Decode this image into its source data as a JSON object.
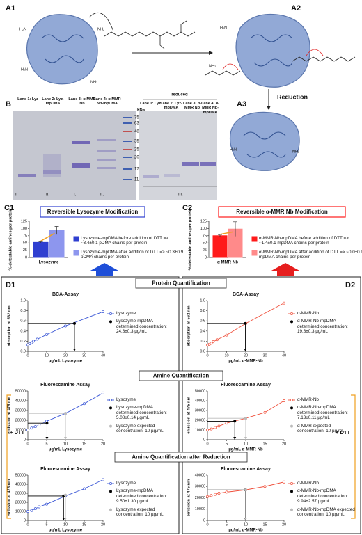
{
  "scheme": {
    "labels": [
      "A1",
      "A2",
      "A3"
    ],
    "reduction": "Reduction",
    "amines": [
      "H₂N",
      "NH₂",
      "H₂N",
      "NH₂",
      "H₂N",
      "NH₂",
      "H₂N",
      "NH₂"
    ]
  },
  "gel": {
    "label": "B",
    "lanes": [
      "Lane 1: Lyz",
      "Lane 2: Lyz-mpDMA",
      "Lane 3: α-MMR Nb",
      "Lane 4: α-MMR Nb-mpDMA"
    ],
    "reduced_lanes": [
      "Lane 1: Lyz",
      "Lane 2: Lyz-mpDMA",
      "Lane 3: α-MMR Nb",
      "Lane 4: α-MMR Nb-mpDMA"
    ],
    "kda": "kDa",
    "markers": [
      "75",
      "63",
      "48",
      "35",
      "25",
      "20",
      "17",
      "11"
    ],
    "reduced": "reduced",
    "groups": [
      "I.",
      "II.",
      "I.",
      "II.",
      "III."
    ]
  },
  "panels": {
    "c1": "C1",
    "c2": "C2",
    "d1": "D1",
    "d2": "D2",
    "sections": [
      "Protein Quantification",
      "Amine Quantification",
      "Amine Quantification after Reduction"
    ],
    "dtt": [
      "+ DTT",
      "+ DTT"
    ]
  },
  "chart_data": [
    {
      "type": "bar",
      "title": "Reversible Lysozyme Modification",
      "ylabel": "% detectable amines per protein",
      "categories": [
        "Lysozyme"
      ],
      "ylim": [
        0,
        125
      ],
      "yticks": [
        0,
        25,
        50,
        75,
        100,
        125
      ],
      "series": [
        {
          "name": "Lysozyme-mpDMA before addition of DTT => ~3.4±0.1 pDMA chains per protein",
          "color": "#2f3fd0",
          "values": [
            52
          ],
          "errors": [
            2
          ]
        },
        {
          "name": "Lysozyme-mpDMA after addition of DTT => ~0.3±0.9 pDMA chains per protein",
          "color": "#8d96ee",
          "values": [
            93
          ],
          "errors": [
            14
          ]
        }
      ]
    },
    {
      "type": "bar",
      "title": "Reversible α-MMR Nb Modification",
      "ylabel": "% detectable amines per protein",
      "categories": [
        "α-MMR-Nb"
      ],
      "ylim": [
        0,
        125
      ],
      "yticks": [
        0,
        25,
        50,
        75,
        100,
        125
      ],
      "series": [
        {
          "name": "α-MMR-Nb-mpDMA before addition of DTT => ~1.4±0.1 mpDMA chains per protein",
          "color": "#ff1a1a",
          "values": [
            75
          ],
          "errors": [
            4
          ]
        },
        {
          "name": "α-MMR-Nb-mpDMA after addition of DTT => ~0.0±0.9 mpDMA chains per protein",
          "color": "#ff8a8a",
          "values": [
            98
          ],
          "errors": [
            25
          ]
        }
      ]
    },
    {
      "type": "line",
      "title": "BCA-Assay",
      "xlabel": "µg/mL Lysozyme",
      "ylabel": "absorption at 562 nm",
      "xlim": [
        0,
        40
      ],
      "xticks": [
        0,
        10,
        20,
        30,
        40
      ],
      "ylim": [
        0,
        1
      ],
      "yticks": [
        {
          "value": 0,
          "label": "0.0"
        },
        0.2,
        0.4,
        0.6,
        0.8,
        {
          "value": 1,
          "label": "1.0"
        }
      ],
      "series": [
        {
          "name": "Lysozyme",
          "color": "#3b57d6",
          "mode": "line",
          "x": [
            0,
            1,
            2,
            3,
            5,
            10,
            20,
            40
          ],
          "values": [
            0.13,
            0.15,
            0.17,
            0.2,
            0.24,
            0.33,
            0.5,
            0.78
          ]
        },
        {
          "name": "Lysozyme-mpDMA determined concentration: 24.8±0.3 µg/mL",
          "color": "#000000",
          "mode": "guide",
          "x": [
            24.8
          ],
          "values": [
            0.55
          ]
        }
      ]
    },
    {
      "type": "line",
      "title": "Fluorescamine Assay",
      "xlabel": "µg/mL Lysozyme",
      "ylabel": "emission at 475 nm",
      "xlim": [
        0,
        20
      ],
      "xticks": [
        0,
        5,
        10,
        15,
        20
      ],
      "ylim": [
        0,
        50000
      ],
      "yticks": [
        0,
        10000,
        20000,
        30000,
        40000,
        50000
      ],
      "series": [
        {
          "name": "Lysozyme",
          "color": "#3b57d6",
          "mode": "line",
          "x": [
            0,
            1,
            2,
            3,
            5,
            10,
            15,
            20
          ],
          "values": [
            10000,
            12000,
            13500,
            15000,
            19000,
            27000,
            37000,
            48000
          ]
        },
        {
          "name": "Lysozyme-mpDMA determined concentration: 5.08±0.14 µg/mL",
          "color": "#000000",
          "mode": "guide",
          "x": [
            5.08
          ],
          "values": [
            17000
          ]
        },
        {
          "name": "Lysozyme expected concentration: 10 µg/mL",
          "color": "#bbbbbb",
          "mode": "guide",
          "x": [
            10
          ],
          "values": [
            27000
          ]
        }
      ]
    },
    {
      "type": "line",
      "title": "Fluorescamine Assay",
      "xlabel": "µg/mL Lysozyme",
      "ylabel": "emission at 475 nm",
      "xlim": [
        0,
        20
      ],
      "xticks": [
        0,
        5,
        10,
        15,
        20
      ],
      "ylim": [
        0,
        50000
      ],
      "yticks": [
        0,
        10000,
        20000,
        30000,
        40000,
        50000
      ],
      "series": [
        {
          "name": "Lysozyme",
          "color": "#3b57d6",
          "mode": "line",
          "x": [
            0,
            1,
            2,
            3,
            5,
            10,
            15,
            20
          ],
          "values": [
            10000,
            11000,
            13000,
            15000,
            18000,
            27000,
            35000,
            45000
          ]
        },
        {
          "name": "Lysozyme-mpDMA determined concentration: 9.50±1.30 µg/mL",
          "color": "#000000",
          "mode": "guide",
          "x": [
            9.5
          ],
          "values": [
            27000
          ]
        },
        {
          "name": "Lysozyme expected concentration: 10 µg/mL",
          "color": "#bbbbbb",
          "mode": "guide",
          "x": [
            10
          ],
          "values": [
            28000
          ]
        }
      ]
    },
    {
      "type": "line",
      "title": "BCA-Assay",
      "xlabel": "µg/mL α-MMR-Nb",
      "ylabel": "absorption at 562 nm",
      "xlim": [
        0,
        40
      ],
      "xticks": [
        0,
        10,
        20,
        30,
        40
      ],
      "ylim": [
        0,
        1
      ],
      "yticks": [
        {
          "value": 0,
          "label": "0.0"
        },
        0.2,
        0.4,
        0.6,
        0.8,
        {
          "value": 1,
          "label": "1.0"
        }
      ],
      "series": [
        {
          "name": "α-MMR-Nb",
          "color": "#f0503c",
          "mode": "line",
          "x": [
            0,
            1,
            2,
            3,
            5,
            10,
            20,
            40
          ],
          "values": [
            0.12,
            0.14,
            0.16,
            0.19,
            0.23,
            0.32,
            0.55,
            0.95
          ]
        },
        {
          "name": "α-MMR-Nb-mpDMA determined concentration: 19.8±0.3 µg/mL",
          "color": "#000000",
          "mode": "guide",
          "x": [
            19.8
          ],
          "values": [
            0.55
          ]
        }
      ]
    },
    {
      "type": "line",
      "title": "Fluorescamine Assay",
      "xlabel": "µg/mL α-MMR-Nb",
      "ylabel": "emission at 475 nm",
      "xlim": [
        0,
        20
      ],
      "xticks": [
        0,
        5,
        10,
        15,
        20
      ],
      "ylim": [
        0,
        50000
      ],
      "yticks": [
        0,
        10000,
        20000,
        30000,
        40000,
        50000
      ],
      "series": [
        {
          "name": "α-MMR-Nb",
          "color": "#f0503c",
          "mode": "line",
          "x": [
            0,
            1,
            2,
            3,
            5,
            10,
            15,
            20
          ],
          "values": [
            10000,
            11000,
            12500,
            14000,
            17000,
            22000,
            28000,
            40000
          ]
        },
        {
          "name": "α-MMR-Nb-mpDMA determined concentration: 7.13±0.11 µg/mL",
          "color": "#000000",
          "mode": "guide",
          "x": [
            7.13
          ],
          "values": [
            19000
          ]
        },
        {
          "name": "α-MMR expected concentration: 10 µg/mL",
          "color": "#bbbbbb",
          "mode": "guide",
          "x": [
            10
          ],
          "values": [
            22000
          ]
        }
      ]
    },
    {
      "type": "line",
      "title": "Fluorescamine Assay",
      "xlabel": "µg/mL α-MMR-Nb",
      "ylabel": "emission at 475 nm",
      "xlim": [
        0,
        20
      ],
      "xticks": [
        0,
        5,
        10,
        15,
        20
      ],
      "ylim": [
        0,
        40000
      ],
      "yticks": [
        0,
        10000,
        20000,
        30000,
        40000
      ],
      "series": [
        {
          "name": "α-MMR-Nb",
          "color": "#f0503c",
          "mode": "line",
          "x": [
            0,
            1,
            2,
            3,
            5,
            10,
            15,
            20
          ],
          "values": [
            21000,
            22000,
            23000,
            24000,
            25000,
            27000,
            30000,
            34000
          ]
        },
        {
          "name": "α-MMR-Nb-mpDMA determined concentration: 9.94±2.57 µg/mL",
          "color": "#000000",
          "mode": "guide",
          "x": [
            9.94
          ],
          "values": [
            27000
          ]
        },
        {
          "name": "α-MMR-Nb-mpDMA expected concentration: 10 µg/mL",
          "color": "#bbbbbb",
          "mode": "guide",
          "x": [
            10
          ],
          "values": [
            27000
          ]
        }
      ]
    }
  ]
}
